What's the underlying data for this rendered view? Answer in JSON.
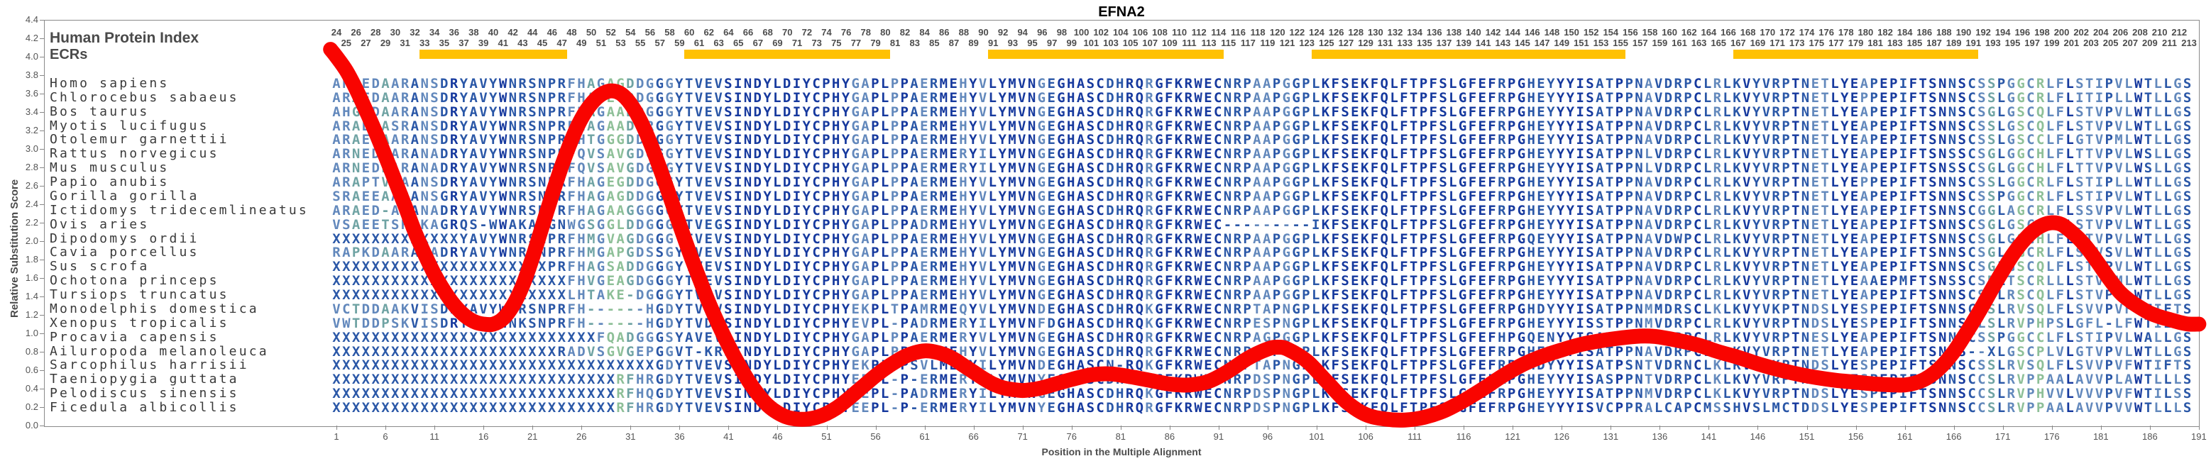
{
  "title": "EFNA2",
  "y_axis": {
    "label": "Relative Substitution Score",
    "min": 0.0,
    "max": 4.4,
    "step": 0.2
  },
  "x_axis": {
    "label": "Position in the Multiple Alignment",
    "tick_start": 1,
    "tick_step": 5,
    "tick_end": 191
  },
  "header": {
    "protein_index_label": "Human Protein Index",
    "ecr_label": "ECRs",
    "index_start": 24,
    "index_end": 213
  },
  "ecr_segments": [
    {
      "start": 10,
      "end": 24
    },
    {
      "start": 37,
      "end": 57
    },
    {
      "start": 68,
      "end": 91
    },
    {
      "start": 101,
      "end": 132
    },
    {
      "start": 144,
      "end": 168
    }
  ],
  "colors": {
    "curve": "#f90400",
    "ecr_bar": "#ffc103",
    "axis_text": "#555555",
    "index_text": "#4d4d4d",
    "species_text": "#3a3a3a",
    "conservation_palette": [
      "#16399e",
      "#2a57a7",
      "#6288bc",
      "#6fa3a3",
      "#8dbf97"
    ],
    "x_char": "#2b59a8"
  },
  "alignment": {
    "length": 190,
    "rows": [
      {
        "species": "Homo sapiens",
        "sequence": "ARAEDAARANSDRYAVYWNRSNPRFHAGAGDDGGGYTVEVSINDYLDIYCPHYGAPLPPAERMEHYVLYMVNGEGHASCDHRQRGFKRWECNRPAAPGGPLKFSEKFQLFTPFSLGFEFRPGHEYYYISATPPNAVDRPCLRLKVYVRPTNETLYEAPEPIFTSNNSCSSPGGCRLFLSTIPVLWTLLGS"
      },
      {
        "species": "Chlorocebus sabaeus",
        "sequence": "ARAEDAARANSDRYAVYWNRSNPRFHAGEGDDGGGYTVEVSINDYLDIYCPHYGAPLPPAERMEHYVLYMVNGEGHASCDHRQRGFKRWECNRPAAPGGPLKFSEKFQLFTPFSLGFEFRPGHEYYYISATPPNAVDRPCLRLKVYVRPTNETLYEPPEPIFTSNNSCSSLGGCRLFLITIPLLWTLLGS"
      },
      {
        "species": "Bos taurus",
        "sequence": "AHGEDAARANSDRYAVYWNRSNPRFHAGAADDGGGYTVEVSINDYLDIYCPHYGAPLPPAERMEHYVLYMVNGEGHASCDHRQRGFKRWECNRPAAPGGPLKFSEKFQLFTPFSLGFEFRPGHEYYYISATPPNAVDRPCLRLKVYVRPTNETLYEAPEPIFTSNNSCSGLGSCQLFLSTVPVLWTLLGS"
      },
      {
        "species": "Myotis lucifugus",
        "sequence": "ARAEDASRANSDRYAVYWNRSNPRFHAGAADDRGGYTVEVSINDYLDIYCPHYGAPLPPAERMEHYVLYMVNGEGHASCDHRQRGFKRWECNRPAAPGGPLKFSEKFQLFTPFSLGFEFRPGHEYYYISATPPNAVDRPCLRLKVYVRPTNETLYEAPEPIFTSNNSCSSLGSCQLFLSTVPVLWTLLGS"
      },
      {
        "species": "Otolemur garnettii",
        "sequence": "ARAEDAARANSDRYAVYWNRSNPRFHTGGGDDGGGYTVEVSINDYLDIYCPHYGAPLPPAERMEHYVLYMVNGEGHASCDHRQRGFKRWECNRPAAPGGPLKFSEKFQLFTPFSLGFEFRPGHEYYYISATPPNAVDRPCLRLKVYVRPTNETLYEAPEPIFTSNNSCSSLGSCCLFLGTVPMLWTLLGS"
      },
      {
        "species": "Rattus norvegicus",
        "sequence": "ARNEDPARANADRYAVYWNRSNPRFQVSAVGDGGGYTVEVSINDYLDIYCPHYGAPLPPAERMERYILYMVNGEGHASCDHRQRGFKRWECNRPAAPGGPLKFSEKFQLFTPFSLGFEFRPGHEYYYISATPPNLVDRPCLRLKVYVRPTNETLYEAPEPIFTSNSSCSGLGGCHLFLTTVPVLWSLLGS"
      },
      {
        "species": "Mus musculus",
        "sequence": "ARNEDPARANADRYAVYWNRSNPRFQVSAVGDGGGYTVEVSINDYLDIYCPHYGAPLPPAERMERYILYMVNGEGHASCDHRQRGFKRWECNRPAAPGGPLKFSEKFQLFTPFSLGFEFRPGHEYYYISATPPNLVDRPCLRLKVYVRPTNETLYEAPEPIFTSNSSCSGLGGCHLFLTTVPVLWSLLGS"
      },
      {
        "species": "Papio anubis",
        "sequence": "ARAPTVRAANSDRYAVYWNRSNPRFHAGEGDDGGGYTVEVSINDYLDIYCPHYGAPLPPAERMEHYVLYMVNGEGHASCDHRQRGFKRWECNRPAAPGGPLKFSEKFQLFTPFSLGFEFRPGHEYYYISATPPNAVDRPCLRLKVYVRPTNETLYEPPEPIFTSNNSCSSLGGCRLFLSTIPLLWTLLGS"
      },
      {
        "species": "Gorilla gorilla",
        "sequence": "SRAEEAARANSGRYAVYWNRSNPRFHAGAGDDGGGYTVEVSINDYLDIYCPHYGAPLPPAERMEHYVLYMVNGEGHASCDHRQRGFKRWECNRPAAPGGPLKFSEKFQLFTPFSLGFEFRPGHEYYYISATPPNAVDRPCLRLKVYVRPTNETLYEAPEPIFTSNNSCSSPGGCRLFLSTIPVLWTLLGS"
      },
      {
        "species": "Ictidomys tridecemlineatus",
        "sequence": "ARAED-ARANADRYAVYWNRSNPRFHAGAAGGGGGYTVEVSINDYLDIYCPHYGAPLPPAERMEHYVLYMVNGEGHASCDHRQRGFKRWECNRPAAPGGPLKFSEKFQLFTPFSLGFEFRPGHEYYYISATPPNAVDRPCLRLKVYVRPTNETLYEAPEPIFTSNNSCGGLAGCRLFLSSVPVLWTLLGS"
      },
      {
        "species": "Ovis aries",
        "sequence": "VSAEETSRAKAGRQS-WWAKASGNWGSGGLDDGGGYTVEGSINDYLDIYCPHYGAPLPPADRMEHYVLYMVNGEGHASCDHRQRGFKRWEC---------IKFSEKFQLFTPFSLGFEFRPGHEYYYISATPPNAVDRPCLRLKVYVRPTNETLYEAPEPIFTSNNSCSGLGSCQLFLSTVPVLWTLLGS"
      },
      {
        "species": "Dipodomys ordii",
        "sequence": "XXXXXXXXXXXXXYAVYWNRSNPRFHMGVAGDGGGYTVEVSINDYLDIYCPHYGAPLPPAERMEHYVLYMVNGEGHASCDHRQRGFKRWECNRPAAPGGPLKFSEKFQLFTPFSLGFEFRPGQEYYYISATPPNAVDWPCLRLKVYVRPTNETLYEAPEPIFTSNNSCSGLGSCHLFLSTVPVLWTLLGS"
      },
      {
        "species": "Cavia porcellus",
        "sequence": "RAPKDAARANADRYAVYWNRSNPRFHMGAPGDSSGYTVEVSINDYLDIYCPHYGAPLPPAERMEHYVLYMVNGEGHASCDHRQRGFKRWECNRPAAPGGPLKFSEKFQLFTPFSLGFEFRPGHEYYYISATPPNAVDRPCLRLKVYVRPTNETLYEAPEPIFTSNNSCSGLGGCRLFLSAVSVLWTLLGS"
      },
      {
        "species": "Sus scrofa",
        "sequence": "XXXXXXXXXXXXXXXXXXXXXXPRFHAGSADDGGGYTVEVSINDYLDIYCPHYGAPLPPAERMEHYVLYMVNGEGHASCDHRQRGFKRWECNRPAAPGGPLKFSEKFQLFTPFSLGFEFRPGHEYYYISATPPNAVDRPCLRLKVYVRPTNETLYEAPEPIFTSNNSCSGLGSCQLFLSTVPVLWTLLGS"
      },
      {
        "species": "Ochotona princeps",
        "sequence": "XXXXXXXXXXXXXXXXXXXXXXXXFHVGEAGDGGGYTVEVSINDYLDIYCPHYGAPLPPAERMEHYVLYMVNGEGHASCDHRQRGFKRWECNRPAAPGGPLKFSEKFQLFTPFSLGFEFRPGHEYYYISATPPNAVDRPCLRLKVYVRPTNETLYEAAEPMFTSNSSCSRLTSCRLLLSTVPMLWTLLGS"
      },
      {
        "species": "Tursiops truncatus",
        "sequence": "XXXXXXXXXXXXXXXXXXXXXXXXLHTAKE-DGGGYTVEVSINDYLDIYCPHYGAPLPPAERMEHYVLYMVNGEGHASCDHRQRGFKRWECNRPAAPGGPLKFSEKFQLFTPFSLGFEFRPGHEYYYISATPPNAVDRPCLRLKVYVRPTNETLYEAPEPIFTSNNSCSGLRSCQLFLSTVPVLWTLLGS"
      },
      {
        "species": "Monodelphis domestica",
        "sequence": "VCTDDAAKVISDRYAVYWNRSNPRFH------HGDYTVEVSINDYLDIYCPHYEKPLTPAMRMEQYVLYMVNDEGHASCDHRQKGFKRWECNRPTAPNGPLKFSEKFQLFTPFSLGFEFRPGHDYYYISATPPNMMDRSCLKLKVYVKPTNDSLYESPEPIFTSNNSCSSLRVSQLFLSVVPVFWTIFTS"
      },
      {
        "species": "Xenopus tropicalis",
        "sequence": "VWTDDPSKVISDRYAVYWNKSNPRFH------HGDYTVDVSINDYLDIYCPHYEVPL-PADRMERYILYMVNFDGHASCDHRQKGFKRWECNRPESPNGPLKFSEKFQLFTPFSLGFEFRPGHEYYYISSTPPNMVDRPCLRLKVYVRPTNDSLYESPEPIFTSNNSGLSLRVPHPSLGFL-LFWTIIVL"
      },
      {
        "species": "Procavia capensis",
        "sequence": "XXXXXXXXXXXXXXXXXXXXXXXXXXXFQADGGGSYAVEVSINDYLDIYCPHYGAPLPPAERMERYVLYMVNGEGHASCDHRQRGFKRWECNRPAGPGGPLKFSEKFQLFTPFSLGFEFHPGQENYYISATPPNAVDRPCLRLKVYVRPTNESLYEAPEPIFTSNNSCSSPGGCCLFLSTIPVLWALLGS"
      },
      {
        "species": "Ailuropoda melanoleuca",
        "sequence": "XXXXXXXXXXXXXXXXXXXXXXXRADVSGVGEPGGVT-KRSINDYLDIYCPHYGAPLPPAERMEHYVLYMVNGEGHASCDHRQRGFKRWECNRPAAPGGPLKFSEKFQLFTPFSLGFEFRPGHEYYYISATPPNAVDRPCLRLKVYVRPTNETLYEAPEPIFTSNNS--XLGSCPLVLGTVPVLWTLLGS"
      },
      {
        "species": "Sarcophilus harrisii",
        "sequence": "XXXXXXXXXXXXXXXXXXXXXXXXXXXXXXXXXGDYTVEVSINDYLDIYCPHYEKPLPPSVLMEEYILYMVNDEGHASCN-RQKGFKRWECNRPTAPNGPLKFSEKFQLFTPFSLGFEFRPGHDYYYISATPSNTVDRNCLKLKVYVKPTNDSLYESPEPIFTSNNSCSSLRVSQLFLSVVPVFWTIFTS"
      },
      {
        "species": "Taeniopygia guttata",
        "sequence": "XXXXXXXXXXXXXXXXXXXXXXXXXXXXXRFHRGDYTVEVSINDYLDIYCPHYEEPL-P-ERMERYILYMVNYEGHASCDHRQRGFKRWECNRPDSPNGPLKFSEKFQLFTPFSLGFEFRPGHEYYYISASPPNTVDRPCLKLKVYVRPTNDSLYESPEPIFTSNNSCCSLRVPPAALAVVPLAWTLLLS"
      },
      {
        "species": "Pelodiscus sinensis",
        "sequence": "XXXXXXXXXXXXXXXXXXXXXXXXXXXXXRFHQGDYTVEVSINDYLDIYCPHYEEPL-PADRMERYILYMVNGEGHASCDHRQKGFKRWECNRPDSPNGPLKFSEKFQLFTPFSLGFEFRPGHEYYYISATPPNMVDRPCLKLKVYVRPTNDSLYESPEPIFTSNNSCCSLRVPHVVLVVVPVFWTILSS"
      },
      {
        "species": "Ficedula albicollis",
        "sequence": "XXXXXXXXXXXXXXXXXXXXXXXXXXXXXRFHRGDYTVEVSINDYLDIYCPHYEEPL-P-ERMERYILYMVNYEGHASCDHRQRGFKRWECNRPDSPNGPLKFSEKFQLFTPFSLGFEFRPGHEYYYISVCPPRALCAPCMSSHVSLMCTDDSLYESPEPIFTSNNSCCSLRVPPAALAVVPVVWTLLLS"
      }
    ]
  },
  "chart_data": {
    "type": "line",
    "title": "EFNA2",
    "xlabel": "Position in the Multiple Alignment",
    "ylabel": "Relative Substitution Score",
    "xlim": [
      1,
      191
    ],
    "ylim": [
      0.0,
      4.4
    ],
    "grid": false,
    "legend": "none",
    "series": [
      {
        "name": "relative substitution score",
        "points": [
          [
            0.4,
            4.08
          ],
          [
            1,
            4.0
          ],
          [
            2,
            3.85
          ],
          [
            3,
            3.65
          ],
          [
            4,
            3.42
          ],
          [
            5,
            3.18
          ],
          [
            6,
            2.92
          ],
          [
            7,
            2.65
          ],
          [
            8,
            2.38
          ],
          [
            9,
            2.1
          ],
          [
            10,
            1.86
          ],
          [
            11,
            1.64
          ],
          [
            12,
            1.46
          ],
          [
            13,
            1.31
          ],
          [
            14,
            1.2
          ],
          [
            15,
            1.13
          ],
          [
            16,
            1.1
          ],
          [
            17,
            1.1
          ],
          [
            18,
            1.16
          ],
          [
            19,
            1.3
          ],
          [
            20,
            1.52
          ],
          [
            21,
            1.82
          ],
          [
            22,
            2.16
          ],
          [
            23,
            2.5
          ],
          [
            24,
            2.82
          ],
          [
            25,
            3.1
          ],
          [
            26,
            3.33
          ],
          [
            27,
            3.49
          ],
          [
            28,
            3.59
          ],
          [
            29,
            3.63
          ],
          [
            30,
            3.6
          ],
          [
            31,
            3.49
          ],
          [
            32,
            3.31
          ],
          [
            33,
            3.07
          ],
          [
            34,
            2.79
          ],
          [
            35,
            2.49
          ],
          [
            36,
            2.18
          ],
          [
            37,
            1.88
          ],
          [
            38,
            1.6
          ],
          [
            39,
            1.33
          ],
          [
            40,
            1.09
          ],
          [
            41,
            0.87
          ],
          [
            42,
            0.67
          ],
          [
            43,
            0.49
          ],
          [
            44,
            0.34
          ],
          [
            45,
            0.22
          ],
          [
            46,
            0.14
          ],
          [
            47,
            0.09
          ],
          [
            48,
            0.07
          ],
          [
            49,
            0.07
          ],
          [
            50,
            0.09
          ],
          [
            51,
            0.13
          ],
          [
            52,
            0.19
          ],
          [
            53,
            0.27
          ],
          [
            54,
            0.36
          ],
          [
            55,
            0.45
          ],
          [
            56,
            0.54
          ],
          [
            57,
            0.62
          ],
          [
            58,
            0.69
          ],
          [
            59,
            0.75
          ],
          [
            60,
            0.79
          ],
          [
            61,
            0.81
          ],
          [
            62,
            0.8
          ],
          [
            63,
            0.77
          ],
          [
            64,
            0.72
          ],
          [
            65,
            0.65
          ],
          [
            66,
            0.58
          ],
          [
            67,
            0.51
          ],
          [
            68,
            0.45
          ],
          [
            69,
            0.41
          ],
          [
            70,
            0.39
          ],
          [
            71,
            0.38
          ],
          [
            72,
            0.39
          ],
          [
            73,
            0.41
          ],
          [
            74,
            0.44
          ],
          [
            76,
            0.5
          ],
          [
            78,
            0.55
          ],
          [
            80,
            0.56
          ],
          [
            82,
            0.53
          ],
          [
            84,
            0.49
          ],
          [
            86,
            0.45
          ],
          [
            88,
            0.44
          ],
          [
            90,
            0.48
          ],
          [
            92,
            0.59
          ],
          [
            94,
            0.73
          ],
          [
            96,
            0.83
          ],
          [
            97,
            0.85
          ],
          [
            98,
            0.83
          ],
          [
            100,
            0.7
          ],
          [
            102,
            0.48
          ],
          [
            104,
            0.26
          ],
          [
            106,
            0.12
          ],
          [
            108,
            0.07
          ],
          [
            110,
            0.06
          ],
          [
            112,
            0.09
          ],
          [
            114,
            0.16
          ],
          [
            116,
            0.27
          ],
          [
            118,
            0.4
          ],
          [
            120,
            0.54
          ],
          [
            122,
            0.66
          ],
          [
            124,
            0.75
          ],
          [
            126,
            0.82
          ],
          [
            128,
            0.88
          ],
          [
            130,
            0.92
          ],
          [
            132,
            0.95
          ],
          [
            134,
            0.97
          ],
          [
            135,
            0.97
          ],
          [
            136,
            0.96
          ],
          [
            138,
            0.92
          ],
          [
            140,
            0.87
          ],
          [
            142,
            0.8
          ],
          [
            144,
            0.74
          ],
          [
            146,
            0.67
          ],
          [
            148,
            0.61
          ],
          [
            150,
            0.56
          ],
          [
            152,
            0.52
          ],
          [
            154,
            0.49
          ],
          [
            156,
            0.47
          ],
          [
            158,
            0.45
          ],
          [
            160,
            0.44
          ],
          [
            161,
            0.44
          ],
          [
            162,
            0.46
          ],
          [
            163,
            0.5
          ],
          [
            164,
            0.57
          ],
          [
            165,
            0.67
          ],
          [
            166,
            0.8
          ],
          [
            167,
            0.96
          ],
          [
            168,
            1.13
          ],
          [
            169,
            1.31
          ],
          [
            170,
            1.5
          ],
          [
            171,
            1.68
          ],
          [
            172,
            1.85
          ],
          [
            173,
            1.99
          ],
          [
            174,
            2.1
          ],
          [
            175,
            2.17
          ],
          [
            176,
            2.2
          ],
          [
            177,
            2.18
          ],
          [
            178,
            2.1
          ],
          [
            179,
            2.0
          ],
          [
            180,
            1.87
          ],
          [
            181,
            1.72
          ],
          [
            182,
            1.57
          ],
          [
            183,
            1.44
          ],
          [
            184,
            1.35
          ],
          [
            185,
            1.28
          ],
          [
            186,
            1.22
          ],
          [
            187,
            1.18
          ],
          [
            188,
            1.15
          ],
          [
            189,
            1.12
          ],
          [
            190,
            1.1
          ],
          [
            191,
            1.1
          ]
        ]
      }
    ]
  }
}
